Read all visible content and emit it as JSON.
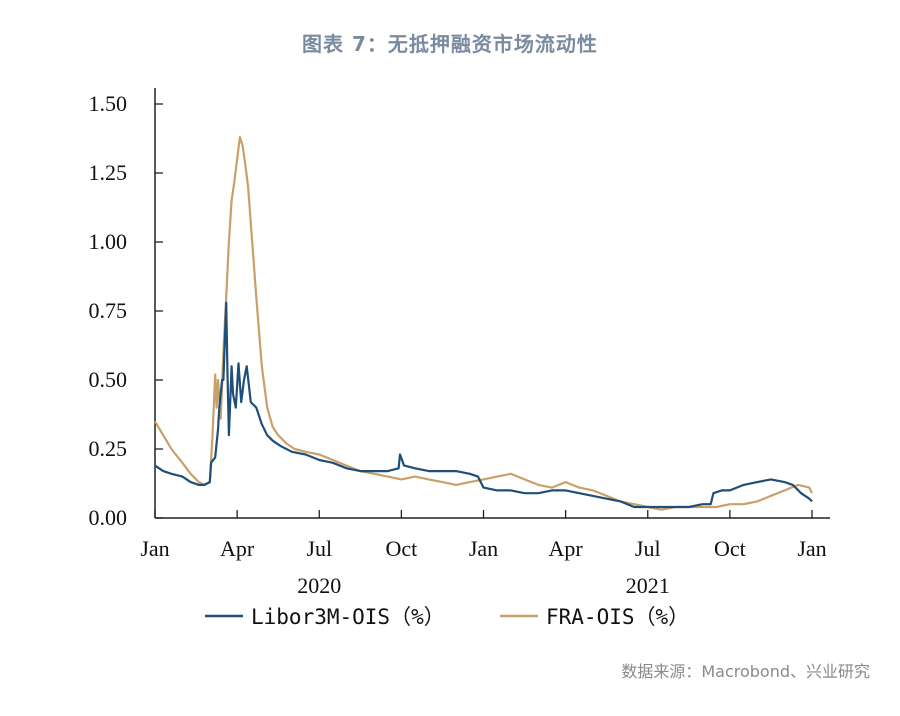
{
  "page": {
    "title": "图表 7：无抵押融资市场流动性",
    "source": "数据来源：Macrobond、兴业研究"
  },
  "chart_data": {
    "type": "line",
    "title": "图表 7：无抵押融资市场流动性",
    "xlabel": "",
    "ylabel": "",
    "ylim": [
      0,
      1.5
    ],
    "yticks": [
      "0.00",
      "0.25",
      "0.50",
      "0.75",
      "1.00",
      "1.25",
      "1.50"
    ],
    "yticks_values": [
      0,
      0.25,
      0.5,
      0.75,
      1.0,
      1.25,
      1.5
    ],
    "xlim_month_index": [
      0,
      24
    ],
    "xticks": [
      {
        "label": "Jan",
        "m": 0
      },
      {
        "label": "Apr",
        "m": 3
      },
      {
        "label": "Jul",
        "m": 6
      },
      {
        "label": "Oct",
        "m": 9
      },
      {
        "label": "Jan",
        "m": 12
      },
      {
        "label": "Apr",
        "m": 15
      },
      {
        "label": "Jul",
        "m": 18
      },
      {
        "label": "Oct",
        "m": 21
      },
      {
        "label": "Jan",
        "m": 24
      }
    ],
    "year_labels": [
      {
        "label": "2020",
        "m": 6
      },
      {
        "label": "2021",
        "m": 18
      }
    ],
    "series": [
      {
        "name": "Libor3M-OIS（%）",
        "color": "#1f4e79",
        "x": [
          0,
          0.3,
          0.6,
          1.0,
          1.3,
          1.6,
          1.8,
          2.0,
          2.05,
          2.2,
          2.3,
          2.35,
          2.45,
          2.5,
          2.6,
          2.65,
          2.7,
          2.8,
          2.85,
          2.95,
          3.05,
          3.15,
          3.25,
          3.35,
          3.5,
          3.7,
          3.9,
          4.1,
          4.3,
          4.6,
          5.0,
          5.5,
          6.0,
          6.5,
          7.0,
          7.5,
          8.0,
          8.5,
          8.9,
          8.95,
          9.1,
          9.5,
          10.0,
          10.5,
          11.0,
          11.5,
          11.8,
          12.0,
          12.5,
          13.0,
          13.5,
          14.0,
          14.5,
          15.0,
          15.5,
          16.0,
          16.5,
          17.0,
          17.5,
          18.0,
          18.5,
          19.0,
          19.5,
          20.0,
          20.3,
          20.4,
          20.7,
          21.0,
          21.5,
          22.0,
          22.5,
          23.0,
          23.3,
          23.6,
          23.9,
          24.0
        ],
        "y": [
          0.19,
          0.17,
          0.16,
          0.15,
          0.13,
          0.12,
          0.12,
          0.13,
          0.2,
          0.22,
          0.32,
          0.4,
          0.5,
          0.5,
          0.78,
          0.52,
          0.3,
          0.55,
          0.45,
          0.4,
          0.56,
          0.42,
          0.5,
          0.55,
          0.42,
          0.4,
          0.34,
          0.3,
          0.28,
          0.26,
          0.24,
          0.23,
          0.21,
          0.2,
          0.18,
          0.17,
          0.17,
          0.17,
          0.18,
          0.23,
          0.19,
          0.18,
          0.17,
          0.17,
          0.17,
          0.16,
          0.15,
          0.11,
          0.1,
          0.1,
          0.09,
          0.09,
          0.1,
          0.1,
          0.09,
          0.08,
          0.07,
          0.06,
          0.04,
          0.04,
          0.04,
          0.04,
          0.04,
          0.05,
          0.05,
          0.09,
          0.1,
          0.1,
          0.12,
          0.13,
          0.14,
          0.13,
          0.12,
          0.09,
          0.07,
          0.06
        ]
      },
      {
        "name": "FRA-OIS（%）",
        "color": "#c9a06a",
        "x": [
          0,
          0.3,
          0.6,
          1.0,
          1.3,
          1.6,
          1.8,
          2.0,
          2.1,
          2.2,
          2.25,
          2.3,
          2.4,
          2.5,
          2.6,
          2.7,
          2.8,
          2.9,
          3.0,
          3.1,
          3.2,
          3.3,
          3.4,
          3.55,
          3.7,
          3.9,
          4.1,
          4.3,
          4.5,
          4.8,
          5.1,
          5.5,
          6.0,
          6.5,
          7.0,
          7.5,
          8.0,
          8.5,
          9.0,
          9.5,
          10.0,
          10.5,
          11.0,
          11.5,
          12.0,
          12.5,
          13.0,
          13.5,
          14.0,
          14.5,
          15.0,
          15.5,
          16.0,
          16.5,
          17.0,
          17.5,
          18.0,
          18.5,
          19.0,
          19.5,
          20.0,
          20.5,
          21.0,
          21.5,
          22.0,
          22.5,
          23.0,
          23.5,
          23.9,
          24.0
        ],
        "y": [
          0.35,
          0.3,
          0.25,
          0.2,
          0.16,
          0.13,
          0.12,
          0.13,
          0.3,
          0.52,
          0.4,
          0.5,
          0.36,
          0.6,
          0.8,
          1.0,
          1.15,
          1.22,
          1.3,
          1.38,
          1.35,
          1.28,
          1.2,
          1.0,
          0.8,
          0.55,
          0.4,
          0.33,
          0.3,
          0.27,
          0.25,
          0.24,
          0.23,
          0.21,
          0.19,
          0.17,
          0.16,
          0.15,
          0.14,
          0.15,
          0.14,
          0.13,
          0.12,
          0.13,
          0.14,
          0.15,
          0.16,
          0.14,
          0.12,
          0.11,
          0.13,
          0.11,
          0.1,
          0.08,
          0.06,
          0.05,
          0.04,
          0.03,
          0.04,
          0.04,
          0.04,
          0.04,
          0.05,
          0.05,
          0.06,
          0.08,
          0.1,
          0.12,
          0.11,
          0.09
        ]
      }
    ],
    "legend_position": "bottom"
  }
}
